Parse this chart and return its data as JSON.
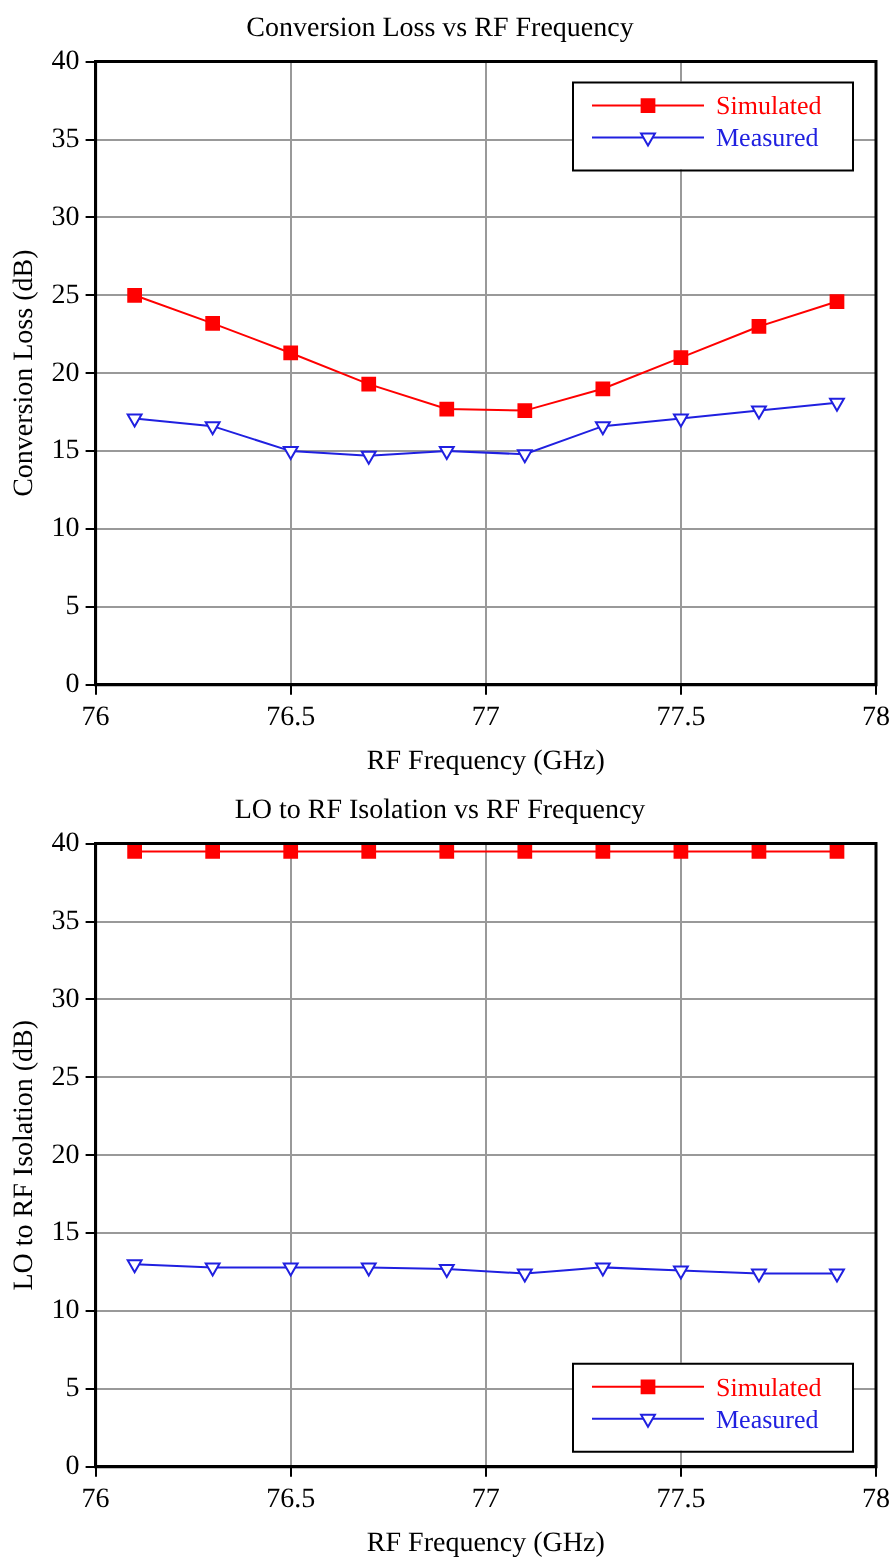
{
  "chart_data": [
    {
      "type": "line",
      "title": "Conversion Loss vs RF Frequency",
      "xlabel": "RF Frequency (GHz)",
      "ylabel": "Conversion Loss (dB)",
      "x": [
        76.1,
        76.3,
        76.5,
        76.7,
        76.9,
        77.1,
        77.3,
        77.5,
        77.7,
        77.9
      ],
      "xlim": [
        76,
        78
      ],
      "xticks": [
        76,
        76.5,
        77,
        77.5,
        78
      ],
      "ylim": [
        0,
        40
      ],
      "yticks": [
        0,
        5,
        10,
        15,
        20,
        25,
        30,
        35,
        40
      ],
      "grid": true,
      "legend": "top right",
      "series": [
        {
          "name": "Simulated",
          "color": "#ff0000",
          "marker": "square",
          "values": [
            25.0,
            23.2,
            21.3,
            19.3,
            17.7,
            17.6,
            19.0,
            21.0,
            23.0,
            24.6
          ]
        },
        {
          "name": "Measured",
          "color": "#2020e0",
          "marker": "triangle",
          "values": [
            17.1,
            16.6,
            15.0,
            14.7,
            15.0,
            14.8,
            16.6,
            17.1,
            17.6,
            18.1
          ]
        }
      ]
    },
    {
      "type": "line",
      "title": "LO to RF Isolation vs RF Frequency",
      "xlabel": "RF Frequency (GHz)",
      "ylabel": "LO to RF Isolation (dB)",
      "x": [
        76.1,
        76.3,
        76.5,
        76.7,
        76.9,
        77.1,
        77.3,
        77.5,
        77.7,
        77.9
      ],
      "xlim": [
        76,
        78
      ],
      "xticks": [
        76,
        76.5,
        77,
        77.5,
        78
      ],
      "ylim": [
        0,
        40
      ],
      "yticks": [
        0,
        5,
        10,
        15,
        20,
        25,
        30,
        35,
        40
      ],
      "grid": true,
      "legend": "bottom right",
      "series": [
        {
          "name": "Simulated",
          "color": "#ff0000",
          "marker": "square",
          "values": [
            39.5,
            39.5,
            39.5,
            39.5,
            39.5,
            39.5,
            39.5,
            39.5,
            39.5,
            39.5
          ]
        },
        {
          "name": "Measured",
          "color": "#2020e0",
          "marker": "triangle",
          "values": [
            13.0,
            12.8,
            12.8,
            12.8,
            12.7,
            12.4,
            12.8,
            12.6,
            12.4,
            12.4
          ]
        }
      ]
    }
  ]
}
